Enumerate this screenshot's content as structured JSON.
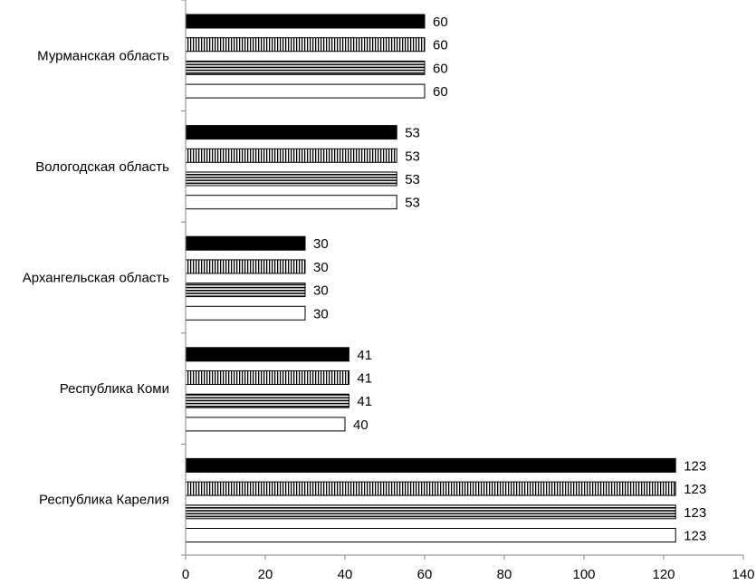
{
  "chart_data": {
    "type": "bar",
    "orientation": "horizontal",
    "title": "",
    "xlabel": "",
    "ylabel": "",
    "xlim": [
      0,
      140
    ],
    "x_ticks": [
      0,
      20,
      40,
      60,
      80,
      100,
      120,
      140
    ],
    "x_tick_labels": [
      "0",
      "20",
      "40",
      "60",
      "80",
      "100",
      "120",
      "140"
    ],
    "categories": [
      "Мурманская область",
      "Вологодская область",
      "Архангельская область",
      "Республика Коми",
      "Республика Карелия"
    ],
    "series": [
      {
        "fill": "solid-black",
        "values": [
          60,
          53,
          30,
          41,
          123
        ],
        "labels": [
          "60",
          "53",
          "30",
          "41",
          "123"
        ]
      },
      {
        "fill": "vertical-stripes",
        "values": [
          60,
          53,
          30,
          41,
          123
        ],
        "labels": [
          "60",
          "53",
          "30",
          "41",
          "123"
        ]
      },
      {
        "fill": "horizontal-stripes",
        "values": [
          60,
          53,
          30,
          41,
          123
        ],
        "labels": [
          "60",
          "53",
          "30",
          "41",
          "123"
        ]
      },
      {
        "fill": "white",
        "values": [
          60,
          53,
          30,
          40,
          123
        ],
        "labels": [
          "60",
          "53",
          "30",
          "40",
          "123"
        ]
      }
    ],
    "grid": false,
    "legend": "none",
    "colors": {
      "bar_stroke": "#000000",
      "axis": "#808080",
      "background": "#ffffff"
    }
  }
}
